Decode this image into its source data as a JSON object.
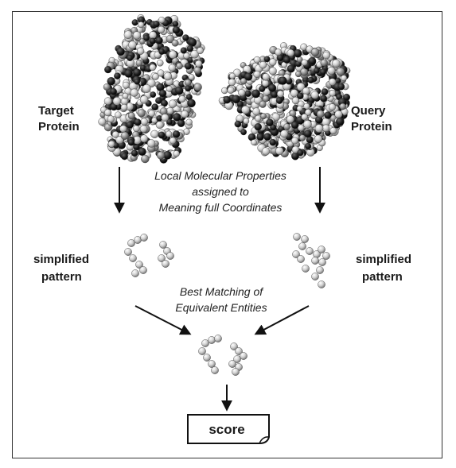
{
  "labels": {
    "target_protein": [
      "Target",
      "Protein"
    ],
    "query_protein": [
      "Query",
      "Protein"
    ],
    "local_properties": [
      "Local Molecular Properties",
      "assigned to",
      "Meaning full Coordinates"
    ],
    "simplified_left": [
      "simplified",
      "pattern"
    ],
    "simplified_right": [
      "simplified",
      "pattern"
    ],
    "best_matching": [
      "Best Matching of",
      "Equivalent Entities"
    ],
    "score": "score"
  },
  "colors": {
    "dark_atom": "#1e1e1e",
    "light_atom": "#cfcfcf",
    "mid_atom": "#8a8a8a",
    "arrow": "#111111"
  }
}
